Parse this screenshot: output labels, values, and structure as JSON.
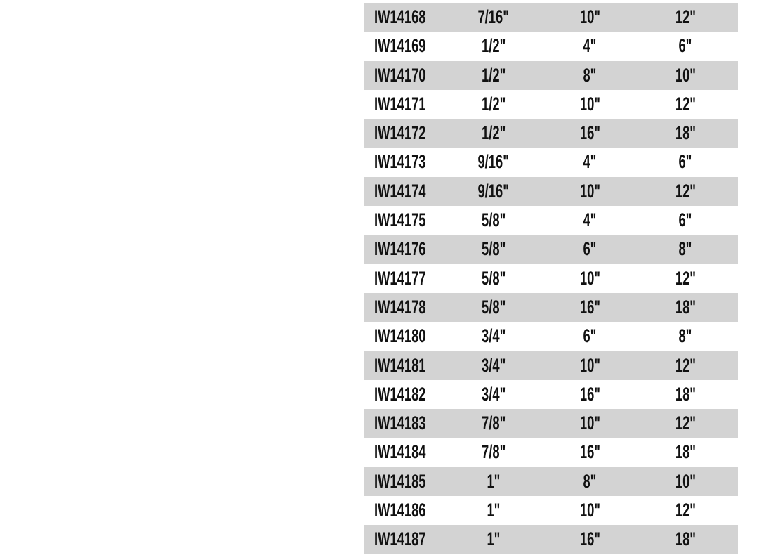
{
  "table": {
    "shade_color": "#d3d3d3",
    "rows": [
      [
        "IW14168",
        "7/16\"",
        "10\"",
        "12\""
      ],
      [
        "IW14169",
        "1/2\"",
        "4\"",
        "6\""
      ],
      [
        "IW14170",
        "1/2\"",
        "8\"",
        "10\""
      ],
      [
        "IW14171",
        "1/2\"",
        "10\"",
        "12\""
      ],
      [
        "IW14172",
        "1/2\"",
        "16\"",
        "18\""
      ],
      [
        "IW14173",
        "9/16\"",
        "4\"",
        "6\""
      ],
      [
        "IW14174",
        "9/16\"",
        "10\"",
        "12\""
      ],
      [
        "IW14175",
        "5/8\"",
        "4\"",
        "6\""
      ],
      [
        "IW14176",
        "5/8\"",
        "6\"",
        "8\""
      ],
      [
        "IW14177",
        "5/8\"",
        "10\"",
        "12\""
      ],
      [
        "IW14178",
        "5/8\"",
        "16\"",
        "18\""
      ],
      [
        "IW14180",
        "3/4\"",
        "6\"",
        "8\""
      ],
      [
        "IW14181",
        "3/4\"",
        "10\"",
        "12\""
      ],
      [
        "IW14182",
        "3/4\"",
        "16\"",
        "18\""
      ],
      [
        "IW14183",
        "7/8\"",
        "10\"",
        "12\""
      ],
      [
        "IW14184",
        "7/8\"",
        "16\"",
        "18\""
      ],
      [
        "IW14185",
        "1\"",
        "8\"",
        "10\""
      ],
      [
        "IW14186",
        "1\"",
        "10\"",
        "12\""
      ],
      [
        "IW14187",
        "1\"",
        "16\"",
        "18\""
      ]
    ]
  }
}
